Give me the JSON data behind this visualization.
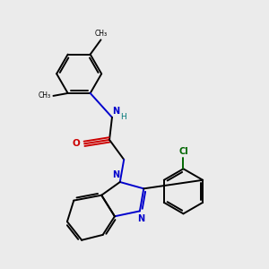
{
  "background_color": "#ebebeb",
  "bond_color": "#000000",
  "N_color": "#0000cc",
  "O_color": "#cc0000",
  "Cl_color": "#006600",
  "H_color": "#007777",
  "figsize": [
    3.0,
    3.0
  ],
  "dpi": 100,
  "xlim": [
    0,
    10
  ],
  "ylim": [
    0,
    10
  ]
}
